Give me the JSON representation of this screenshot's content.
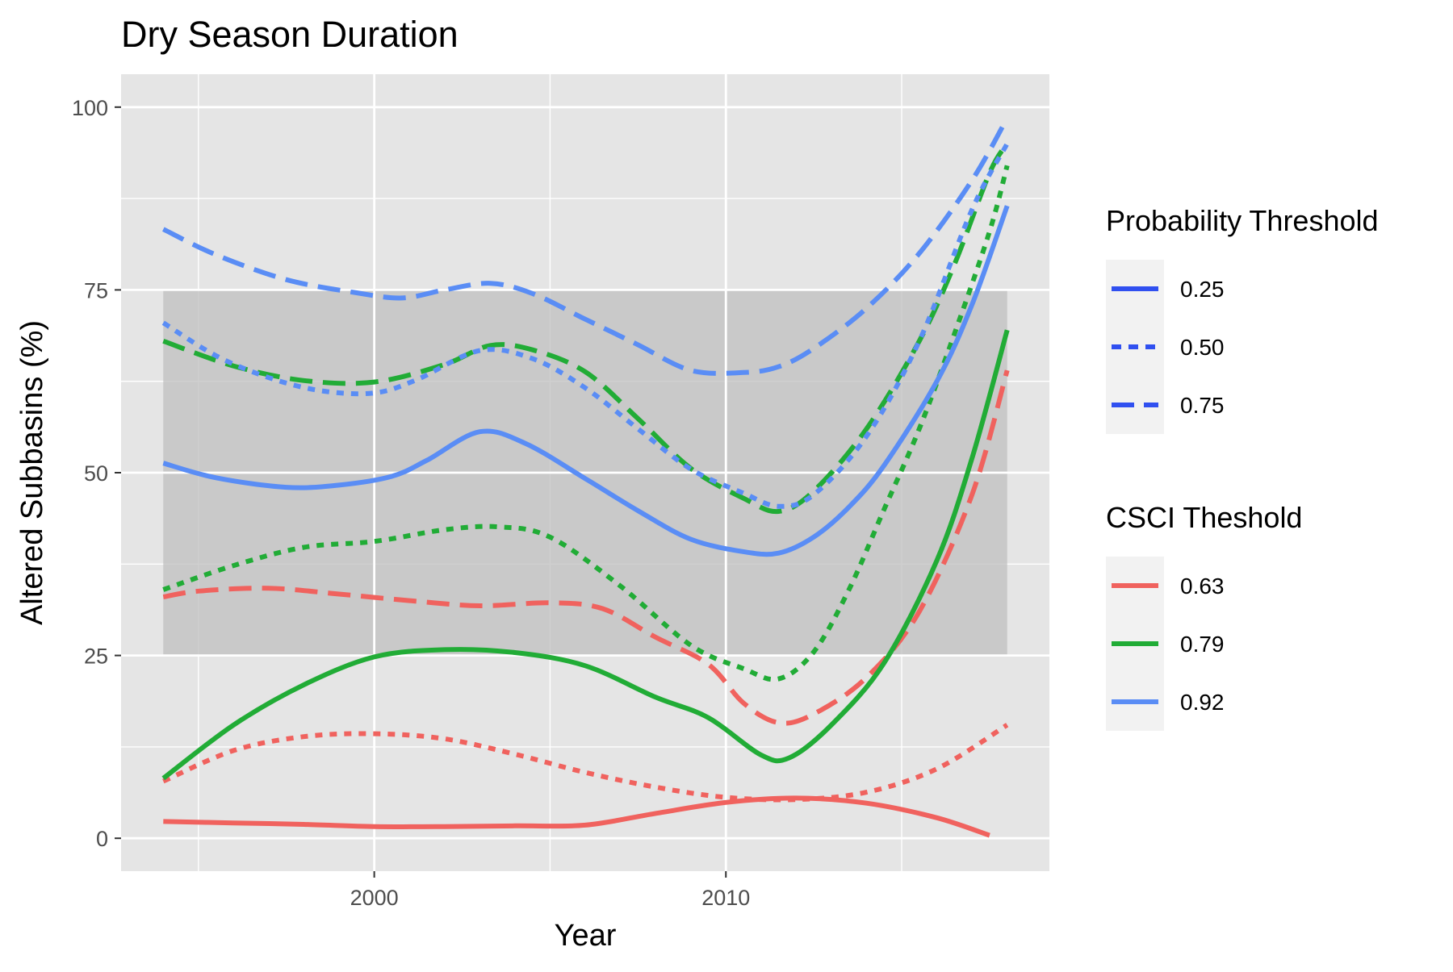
{
  "chart_data": {
    "type": "line",
    "title": "Dry Season Duration",
    "xlabel": "Year",
    "ylabel": "Altered Subbasins (%)",
    "xlim": [
      1992.8,
      2019.2
    ],
    "ylim": [
      -4.5,
      104.5
    ],
    "x_ticks": [
      2000,
      2010
    ],
    "x_tick_labels": [
      "2000",
      "2010"
    ],
    "x_minor_ticks": [
      1995,
      2005,
      2015
    ],
    "y_ticks": [
      0,
      25,
      50,
      75,
      100
    ],
    "y_tick_labels": [
      "0",
      "25",
      "50",
      "75",
      "100"
    ],
    "y_minor_ticks": [
      12.5,
      37.5,
      62.5,
      87.5
    ],
    "grid": true,
    "shaded_band": {
      "x": [
        1994,
        2018
      ],
      "y": [
        25,
        75
      ]
    },
    "legends": [
      {
        "title": "Probability Threshold",
        "placement": "right",
        "color": "#3050f0",
        "entries": [
          {
            "label": "0.25",
            "linetype": "solid"
          },
          {
            "label": "0.50",
            "linetype": "dotted"
          },
          {
            "label": "0.75",
            "linetype": "dashed"
          }
        ]
      },
      {
        "title": "CSCI Theshold",
        "placement": "right",
        "entries": [
          {
            "label": "0.63",
            "color": "#f0625e"
          },
          {
            "label": "0.79",
            "color": "#21ac36"
          },
          {
            "label": "0.92",
            "color": "#5a8df5"
          }
        ]
      }
    ],
    "series": [
      {
        "csci": "0.63",
        "probability": "0.25",
        "color": "#f0625e",
        "linetype": "solid",
        "x": [
          1994,
          1996,
          1998,
          2000,
          2002,
          2004,
          2006,
          2008,
          2010,
          2012,
          2014,
          2016,
          2017.5
        ],
        "y": [
          2.3,
          2.1,
          1.9,
          1.6,
          1.6,
          1.7,
          1.8,
          3.4,
          4.9,
          5.5,
          4.8,
          2.8,
          0.4
        ]
      },
      {
        "csci": "0.63",
        "probability": "0.50",
        "color": "#f0625e",
        "linetype": "dotted",
        "x": [
          1994,
          1996,
          1998,
          2000,
          2002,
          2004,
          2006,
          2008,
          2010,
          2012,
          2014,
          2016,
          2018
        ],
        "y": [
          7.8,
          12,
          13.9,
          14.3,
          13.6,
          11.5,
          9,
          7,
          5.6,
          5.3,
          6.3,
          9.5,
          15.5
        ]
      },
      {
        "csci": "0.63",
        "probability": "0.75",
        "color": "#f0625e",
        "linetype": "dashed",
        "x": [
          1994,
          1995,
          1997,
          1999,
          2001,
          2003,
          2005,
          2006.5,
          2008,
          2009.5,
          2010.5,
          2011.5,
          2012.5,
          2014,
          2015.5,
          2017,
          2018
        ],
        "y": [
          33,
          33.8,
          34.2,
          33.4,
          32.5,
          31.8,
          32.2,
          31.4,
          27.5,
          23.8,
          18.5,
          15.8,
          17,
          22,
          31,
          47,
          64
        ]
      },
      {
        "csci": "0.79",
        "probability": "0.25",
        "color": "#21ac36",
        "linetype": "solid",
        "x": [
          1994,
          1996,
          1998,
          2000,
          2002,
          2004,
          2006,
          2008,
          2009.5,
          2011,
          2011.8,
          2013,
          2014.5,
          2016,
          2017,
          2018
        ],
        "y": [
          8.2,
          15.5,
          21,
          24.8,
          25.8,
          25.4,
          23.6,
          19.3,
          16.5,
          11.4,
          11,
          15.5,
          24,
          38,
          52,
          69.5
        ]
      },
      {
        "csci": "0.79",
        "probability": "0.50",
        "color": "#21ac36",
        "linetype": "dotted",
        "x": [
          1994,
          1996,
          1998,
          2000,
          2002,
          2003.5,
          2005,
          2007,
          2009,
          2010.5,
          2011.5,
          2012.5,
          2013.5,
          2014.5,
          2015.5,
          2016.5,
          2017.5,
          2018
        ],
        "y": [
          34,
          37.3,
          39.8,
          40.6,
          42.2,
          42.6,
          41.2,
          34.5,
          26.4,
          23.2,
          21.8,
          25.5,
          34,
          45,
          56,
          69,
          83,
          92
        ]
      },
      {
        "csci": "0.79",
        "probability": "0.75",
        "color": "#21ac36",
        "linetype": "dashed",
        "x": [
          1994,
          1996,
          1998,
          2000,
          2002,
          2003.3,
          2004.5,
          2006,
          2007.5,
          2009,
          2010.5,
          2011.5,
          2012.5,
          2014,
          2015.5,
          2016.5,
          2017.5,
          2018
        ],
        "y": [
          68,
          64.6,
          62.6,
          62.4,
          64.8,
          67.4,
          66.8,
          63.8,
          57.4,
          50.6,
          46.5,
          44.7,
          47.5,
          56,
          68,
          78.5,
          91,
          95
        ]
      },
      {
        "csci": "0.92",
        "probability": "0.25",
        "color": "#5a8df5",
        "linetype": "solid",
        "x": [
          1994,
          1995.5,
          1997.5,
          1999,
          2000.5,
          2001.5,
          2003,
          2004.3,
          2006,
          2007.5,
          2009,
          2010.5,
          2011.5,
          2012.5,
          2013.5,
          2014.5,
          2016,
          2017,
          2018
        ],
        "y": [
          51.3,
          49.3,
          48,
          48.3,
          49.5,
          51.7,
          55.6,
          54,
          49.2,
          44.8,
          40.9,
          39.2,
          39,
          41.2,
          45.3,
          51,
          62.5,
          73,
          86.5
        ]
      },
      {
        "csci": "0.92",
        "probability": "0.50",
        "color": "#5a8df5",
        "linetype": "dotted",
        "x": [
          1994,
          1995.5,
          1997,
          1998.5,
          2000,
          2001.2,
          2003,
          2004.5,
          2006,
          2007.5,
          2009,
          2010.5,
          2011.5,
          2012.5,
          2014,
          2015.5,
          2017,
          2018
        ],
        "y": [
          70.5,
          66,
          63,
          61.2,
          60.9,
          62.7,
          66.7,
          65.6,
          61.6,
          56,
          50.5,
          47.2,
          45.4,
          47,
          55,
          68,
          86,
          95
        ]
      },
      {
        "csci": "0.92",
        "probability": "0.75",
        "color": "#5a8df5",
        "linetype": "dashed",
        "x": [
          1994,
          1995.5,
          1997.5,
          1999.5,
          2000.8,
          2002,
          2003.3,
          2004.5,
          2006,
          2007.5,
          2009,
          2010.5,
          2011.5,
          2012.5,
          2014,
          2015.5,
          2017,
          2018
        ],
        "y": [
          83.3,
          79.8,
          76.4,
          74.6,
          73.9,
          75,
          75.9,
          74.5,
          71,
          67.5,
          64,
          63.7,
          64.5,
          67,
          72.5,
          80,
          90,
          98.5
        ]
      }
    ]
  }
}
